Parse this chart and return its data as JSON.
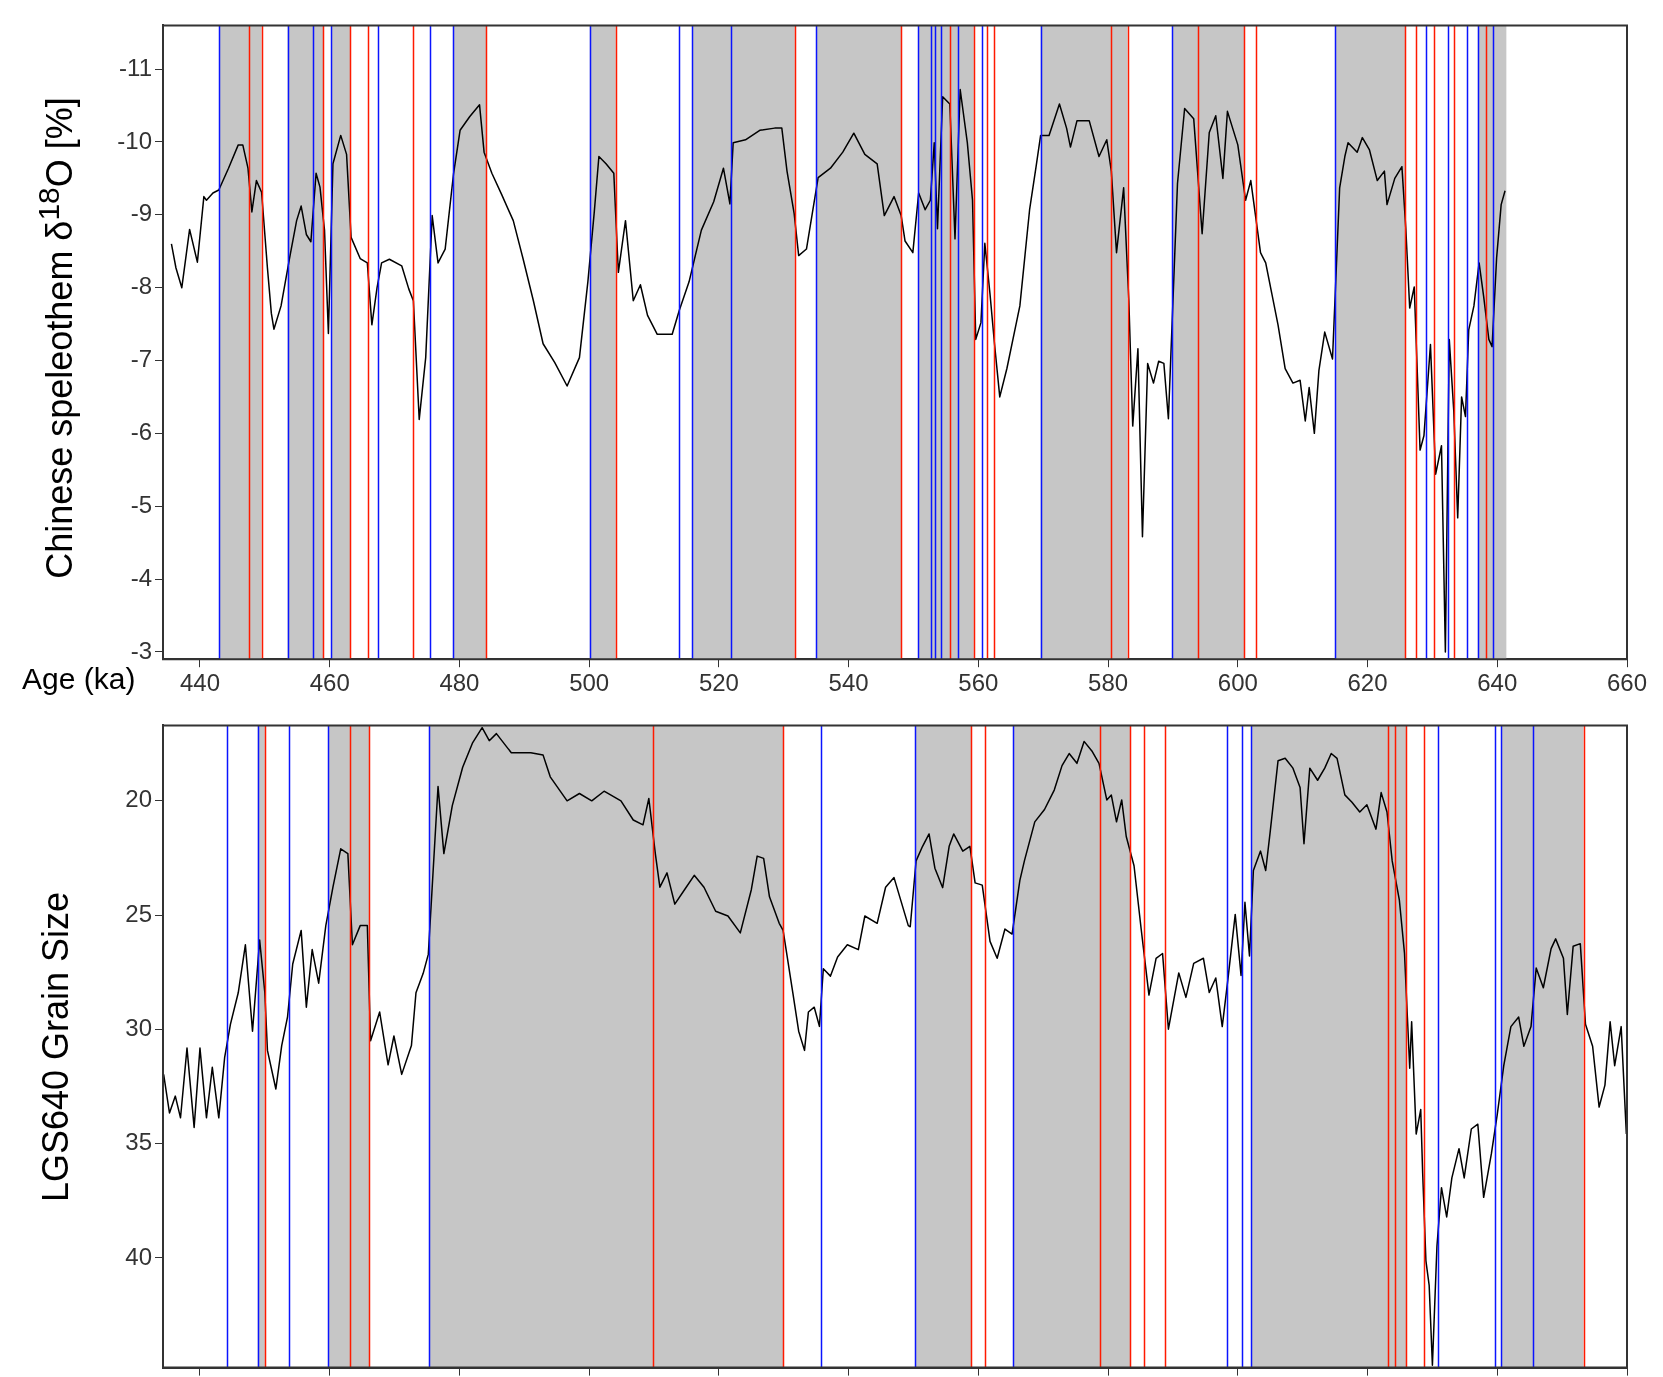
{
  "chart_data": [
    {
      "type": "line",
      "ylabel": "Chinese speleothem δ$^{18}$O [%]",
      "xlabel": "Age (ka)",
      "marker": "none",
      "legend": false,
      "xlim": [
        434.3,
        660
      ],
      "xticks": [
        440,
        460,
        480,
        500,
        520,
        540,
        560,
        580,
        600,
        620,
        640,
        660
      ],
      "ylim": [
        -2.9,
        -11.6
      ],
      "yticks": [
        -11,
        -10,
        -9,
        -8,
        -7,
        -6,
        -5,
        -4,
        -3
      ],
      "x": [
        435.6,
        436.3,
        437.2,
        438.4,
        439.6,
        440.6,
        441.0,
        442.0,
        442.9,
        444.4,
        445.9,
        446.6,
        447.4,
        448.0,
        448.7,
        449.5,
        450.4,
        451.0,
        451.4,
        452.5,
        453.8,
        454.9,
        455.6,
        456.4,
        457.1,
        457.9,
        458.5,
        459.2,
        459.8,
        460.5,
        461.7,
        462.6,
        463.3,
        464.7,
        465.8,
        466.5,
        467.3,
        468.0,
        469.2,
        471.1,
        472.2,
        472.9,
        473.8,
        474.8,
        475.8,
        476.7,
        477.8,
        479.1,
        480.1,
        481.6,
        483.1,
        483.8,
        485.0,
        486.5,
        488.3,
        489.8,
        491.4,
        492.9,
        494.7,
        496.6,
        498.5,
        499.8,
        500.8,
        501.5,
        502.6,
        503.8,
        504.5,
        505.6,
        506.8,
        507.9,
        509.0,
        510.5,
        512.8,
        513.9,
        515.4,
        517.3,
        519.2,
        520.7,
        521.7,
        522.2,
        524.1,
        526.3,
        528.6,
        529.7,
        530.5,
        531.6,
        532.3,
        533.5,
        534.4,
        535.3,
        537.2,
        539.1,
        540.8,
        542.5,
        544.4,
        545.5,
        547.0,
        548.1,
        548.7,
        549.9,
        550.8,
        551.8,
        552.6,
        553.2,
        553.7,
        554.5,
        555.6,
        556.4,
        557.2,
        558.3,
        559.1,
        559.6,
        560.4,
        561.0,
        561.8,
        562.5,
        563.3,
        564.4,
        566.4,
        567.9,
        568.9,
        569.6,
        570.9,
        572.5,
        573.6,
        574.2,
        575.2,
        577.1,
        578.6,
        579.8,
        580.5,
        581.3,
        582.4,
        583.2,
        583.8,
        584.6,
        585.3,
        586.1,
        587.0,
        587.8,
        588.6,
        589.3,
        590.7,
        591.8,
        593.2,
        594.5,
        595.6,
        596.6,
        597.7,
        598.4,
        600.0,
        601.2,
        602.0,
        603.5,
        604.3,
        606.2,
        607.3,
        608.5,
        609.6,
        610.4,
        611.0,
        611.8,
        612.5,
        613.4,
        614.6,
        615.7,
        616.5,
        617.0,
        618.4,
        619.2,
        620.3,
        621.5,
        622.6,
        623.0,
        624.2,
        625.3,
        625.9,
        626.5,
        627.2,
        628.1,
        628.7,
        629.7,
        630.5,
        631.4,
        632.0,
        632.6,
        633.3,
        633.9,
        634.5,
        635.1,
        635.6,
        636.4,
        637.2,
        637.9,
        638.7,
        639.2,
        639.9,
        640.6,
        641.2
      ],
      "series": [
        {
          "color": "#000000",
          "values": [
            -8.6,
            -8.27,
            -8.0,
            -8.8,
            -8.35,
            -9.25,
            -9.2,
            -9.3,
            -9.34,
            -9.64,
            -9.96,
            -9.96,
            -9.64,
            -9.04,
            -9.47,
            -9.31,
            -8.27,
            -7.65,
            -7.43,
            -7.75,
            -8.4,
            -8.92,
            -9.12,
            -8.73,
            -8.63,
            -9.57,
            -9.38,
            -8.79,
            -7.37,
            -9.7,
            -10.09,
            -9.83,
            -8.69,
            -8.4,
            -8.34,
            -7.49,
            -8.0,
            -8.34,
            -8.39,
            -8.3,
            -7.98,
            -7.82,
            -6.19,
            -7.04,
            -8.99,
            -8.34,
            -8.53,
            -9.57,
            -10.16,
            -10.35,
            -10.51,
            -9.86,
            -9.57,
            -9.28,
            -8.92,
            -8.4,
            -7.82,
            -7.23,
            -6.97,
            -6.65,
            -7.04,
            -8.08,
            -9.05,
            -9.8,
            -9.7,
            -9.57,
            -8.21,
            -8.92,
            -7.82,
            -8.04,
            -7.62,
            -7.36,
            -7.36,
            -7.69,
            -8.08,
            -8.79,
            -9.18,
            -9.64,
            -9.15,
            -9.99,
            -10.03,
            -10.16,
            -10.19,
            -10.19,
            -9.6,
            -9.02,
            -8.44,
            -8.53,
            -9.02,
            -9.51,
            -9.64,
            -9.86,
            -10.12,
            -9.83,
            -9.7,
            -8.99,
            -9.25,
            -8.99,
            -8.64,
            -8.48,
            -9.3,
            -9.07,
            -9.2,
            -9.99,
            -8.81,
            -10.62,
            -10.52,
            -8.67,
            -10.72,
            -9.99,
            -9.2,
            -7.29,
            -7.52,
            -8.61,
            -7.91,
            -7.22,
            -6.5,
            -6.89,
            -7.75,
            -9.07,
            -9.66,
            -10.09,
            -10.09,
            -10.52,
            -10.19,
            -9.93,
            -10.29,
            -10.29,
            -9.8,
            -10.03,
            -9.6,
            -8.48,
            -9.37,
            -7.82,
            -6.1,
            -7.16,
            -4.58,
            -6.96,
            -6.69,
            -6.99,
            -6.96,
            -6.2,
            -9.43,
            -10.46,
            -10.32,
            -8.74,
            -10.13,
            -10.36,
            -9.5,
            -10.42,
            -9.96,
            -9.2,
            -9.47,
            -8.48,
            -8.34,
            -7.49,
            -6.89,
            -6.69,
            -6.73,
            -6.17,
            -6.63,
            -6.0,
            -6.86,
            -7.39,
            -7.02,
            -9.37,
            -9.8,
            -9.99,
            -9.86,
            -10.06,
            -9.89,
            -9.47,
            -9.6,
            -9.14,
            -9.5,
            -9.66,
            -8.81,
            -7.72,
            -8.01,
            -5.77,
            -5.97,
            -7.22,
            -5.44,
            -5.83,
            -3.0,
            -7.29,
            -6.3,
            -4.84,
            -6.5,
            -6.23,
            -7.42,
            -7.75,
            -8.34,
            -7.88,
            -7.29,
            -7.19,
            -8.41,
            -9.14,
            -9.33
          ]
        }
      ],
      "bands": [
        {
          "axis": "x",
          "from": 443.0,
          "to": 449.5,
          "color": "#c6c6c6"
        },
        {
          "axis": "x",
          "from": 453.5,
          "to": 459.0,
          "color": "#c6c6c6"
        },
        {
          "axis": "x",
          "from": 460.2,
          "to": 463.2,
          "color": "#c6c6c6"
        },
        {
          "axis": "x",
          "from": 479.0,
          "to": 484.1,
          "color": "#c6c6c6"
        },
        {
          "axis": "x",
          "from": 500.1,
          "to": 504.1,
          "color": "#c6c6c6"
        },
        {
          "axis": "x",
          "from": 515.9,
          "to": 531.7,
          "color": "#c6c6c6"
        },
        {
          "axis": "x",
          "from": 535.0,
          "to": 548.1,
          "color": "#c6c6c6"
        },
        {
          "axis": "x",
          "from": 550.7,
          "to": 559.3,
          "color": "#c6c6c6"
        },
        {
          "axis": "x",
          "from": 569.6,
          "to": 583.0,
          "color": "#c6c6c6"
        },
        {
          "axis": "x",
          "from": 589.9,
          "to": 601.0,
          "color": "#c6c6c6"
        },
        {
          "axis": "x",
          "from": 615.0,
          "to": 625.8,
          "color": "#c6c6c6"
        },
        {
          "axis": "x",
          "from": 637.0,
          "to": 641.4,
          "color": "#c6c6c6"
        }
      ],
      "ref_lines": [
        {
          "axis": "x",
          "value": 443.0,
          "color": "#0a14ff"
        },
        {
          "axis": "x",
          "value": 447.5,
          "color": "#ff1a00"
        },
        {
          "axis": "x",
          "value": 449.5,
          "color": "#ff1a00"
        },
        {
          "axis": "x",
          "value": 453.5,
          "color": "#0a14ff"
        },
        {
          "axis": "x",
          "value": 457.4,
          "color": "#0a14ff"
        },
        {
          "axis": "x",
          "value": 459.0,
          "color": "#ff1a00"
        },
        {
          "axis": "x",
          "value": 460.2,
          "color": "#0a14ff"
        },
        {
          "axis": "x",
          "value": 463.2,
          "color": "#ff1a00"
        },
        {
          "axis": "x",
          "value": 465.9,
          "color": "#ff1a00"
        },
        {
          "axis": "x",
          "value": 467.4,
          "color": "#0a14ff"
        },
        {
          "axis": "x",
          "value": 472.8,
          "color": "#ff1a00"
        },
        {
          "axis": "x",
          "value": 475.5,
          "color": "#0a14ff"
        },
        {
          "axis": "x",
          "value": 479.0,
          "color": "#0a14ff"
        },
        {
          "axis": "x",
          "value": 484.1,
          "color": "#ff1a00"
        },
        {
          "axis": "x",
          "value": 500.1,
          "color": "#0a14ff"
        },
        {
          "axis": "x",
          "value": 504.1,
          "color": "#ff1a00"
        },
        {
          "axis": "x",
          "value": 513.9,
          "color": "#0a14ff"
        },
        {
          "axis": "x",
          "value": 515.9,
          "color": "#0a14ff"
        },
        {
          "axis": "x",
          "value": 521.9,
          "color": "#0a14ff"
        },
        {
          "axis": "x",
          "value": 531.7,
          "color": "#ff1a00"
        },
        {
          "axis": "x",
          "value": 535.0,
          "color": "#0a14ff"
        },
        {
          "axis": "x",
          "value": 548.1,
          "color": "#ff1a00"
        },
        {
          "axis": "x",
          "value": 550.7,
          "color": "#0a14ff"
        },
        {
          "axis": "x",
          "value": 552.7,
          "color": "#0a14ff"
        },
        {
          "axis": "x",
          "value": 553.3,
          "color": "#0a14ff"
        },
        {
          "axis": "x",
          "value": 554.3,
          "color": "#0a14ff"
        },
        {
          "axis": "x",
          "value": 555.6,
          "color": "#ff1a00"
        },
        {
          "axis": "x",
          "value": 556.9,
          "color": "#0a14ff"
        },
        {
          "axis": "x",
          "value": 559.3,
          "color": "#ff1a00"
        },
        {
          "axis": "x",
          "value": 560.5,
          "color": "#0a14ff"
        },
        {
          "axis": "x",
          "value": 561.4,
          "color": "#ff1a00"
        },
        {
          "axis": "x",
          "value": 562.4,
          "color": "#ff1a00"
        },
        {
          "axis": "x",
          "value": 569.6,
          "color": "#0a14ff"
        },
        {
          "axis": "x",
          "value": 580.4,
          "color": "#ff1a00"
        },
        {
          "axis": "x",
          "value": 583.0,
          "color": "#ff1a00"
        },
        {
          "axis": "x",
          "value": 589.9,
          "color": "#0a14ff"
        },
        {
          "axis": "x",
          "value": 593.9,
          "color": "#ff1a00"
        },
        {
          "axis": "x",
          "value": 601.0,
          "color": "#ff1a00"
        },
        {
          "axis": "x",
          "value": 602.8,
          "color": "#ff1a00"
        },
        {
          "axis": "x",
          "value": 615.0,
          "color": "#0a14ff"
        },
        {
          "axis": "x",
          "value": 625.8,
          "color": "#ff1a00"
        },
        {
          "axis": "x",
          "value": 627.4,
          "color": "#ff1a00"
        },
        {
          "axis": "x",
          "value": 629.0,
          "color": "#0a14ff"
        },
        {
          "axis": "x",
          "value": 630.3,
          "color": "#ff1a00"
        },
        {
          "axis": "x",
          "value": 632.4,
          "color": "#0a14ff"
        },
        {
          "axis": "x",
          "value": 633.4,
          "color": "#ff1a00"
        },
        {
          "axis": "x",
          "value": 635.3,
          "color": "#0a14ff"
        },
        {
          "axis": "x",
          "value": 637.0,
          "color": "#0a14ff"
        },
        {
          "axis": "x",
          "value": 638.2,
          "color": "#ff1a00"
        },
        {
          "axis": "x",
          "value": 639.3,
          "color": "#0a14ff"
        }
      ]
    },
    {
      "type": "line",
      "ylabel": "LGS640 Grain Size",
      "marker": "none",
      "legend": false,
      "tick_labels": "y",
      "xlim": [
        434.3,
        660
      ],
      "xticks": [
        440,
        460,
        480,
        500,
        520,
        540,
        560,
        580,
        600,
        620,
        640,
        660
      ],
      "ylim": [
        44.8,
        16.7
      ],
      "yticks": [
        20,
        25,
        30,
        35,
        40
      ],
      "x": [
        434.4,
        435.3,
        436.2,
        437.0,
        438.0,
        439.1,
        440.0,
        441.0,
        441.9,
        442.9,
        443.8,
        444.7,
        445.9,
        447.0,
        448.1,
        449.2,
        450.0,
        450.4,
        451.7,
        452.6,
        453.5,
        454.3,
        455.6,
        456.4,
        457.3,
        458.3,
        459.4,
        460.5,
        461.7,
        462.8,
        463.5,
        464.7,
        465.8,
        466.3,
        467.7,
        469.0,
        469.9,
        471.1,
        472.6,
        473.3,
        474.4,
        475.2,
        475.8,
        476.7,
        477.6,
        478.9,
        480.5,
        482.0,
        483.5,
        484.6,
        485.7,
        488.0,
        491.0,
        492.9,
        494.0,
        496.6,
        498.5,
        500.4,
        502.3,
        504.9,
        506.8,
        508.3,
        509.2,
        510.2,
        510.9,
        512.0,
        513.2,
        514.7,
        516.2,
        517.7,
        519.5,
        521.4,
        523.3,
        525.0,
        525.9,
        526.9,
        527.8,
        529.3,
        529.9,
        531.4,
        532.3,
        533.2,
        533.8,
        534.7,
        535.5,
        536.1,
        537.2,
        538.3,
        539.8,
        541.5,
        542.5,
        544.4,
        545.7,
        547.0,
        548.1,
        549.2,
        549.5,
        550.4,
        551.4,
        552.4,
        553.3,
        554.5,
        555.5,
        556.2,
        557.6,
        558.7,
        559.5,
        560.6,
        561.8,
        562.9,
        564.1,
        565.2,
        566.4,
        567.1,
        568.7,
        570.2,
        571.7,
        572.9,
        574.0,
        575.2,
        576.3,
        577.5,
        578.6,
        579.8,
        580.5,
        581.3,
        582.1,
        582.8,
        584.0,
        585.1,
        586.3,
        587.4,
        588.4,
        589.3,
        590.9,
        592.0,
        593.2,
        594.7,
        595.6,
        596.6,
        597.6,
        598.5,
        599.6,
        600.5,
        601.1,
        601.8,
        602.4,
        603.5,
        604.3,
        605.0,
        606.2,
        607.3,
        608.5,
        609.6,
        610.2,
        611.1,
        612.3,
        613.4,
        614.4,
        615.3,
        616.5,
        617.6,
        618.8,
        619.9,
        621.3,
        622.1,
        623.0,
        623.8,
        624.9,
        625.7,
        626.5,
        626.8,
        627.5,
        628.2,
        628.5,
        629.0,
        629.5,
        630.0,
        630.7,
        631.4,
        632.2,
        633.0,
        634.1,
        634.9,
        636.0,
        637.0,
        637.9,
        639.1,
        640.0,
        641.0,
        642.1,
        643.3,
        644.1,
        645.2,
        646.0,
        647.1,
        648.3,
        649.0,
        650.2,
        650.8,
        651.7,
        652.8,
        653.6,
        654.7,
        655.7,
        656.6,
        657.4,
        658.1,
        659.1,
        659.9
      ],
      "series": [
        {
          "color": "#000000",
          "values": [
            31.97,
            33.66,
            32.92,
            33.87,
            30.82,
            34.29,
            30.82,
            33.87,
            31.66,
            33.87,
            31.24,
            29.77,
            28.4,
            26.3,
            30.08,
            26.09,
            28.4,
            30.92,
            32.61,
            30.71,
            29.45,
            27.14,
            25.67,
            29.03,
            26.51,
            27.98,
            25.46,
            23.78,
            22.1,
            22.31,
            26.3,
            25.46,
            25.46,
            30.5,
            29.24,
            31.55,
            30.29,
            31.97,
            30.71,
            28.4,
            27.56,
            26.72,
            23.78,
            19.37,
            22.31,
            20.21,
            18.53,
            17.48,
            16.8,
            17.37,
            17.06,
            17.9,
            17.9,
            18.0,
            18.95,
            20.0,
            19.68,
            20.0,
            19.58,
            20.0,
            20.84,
            21.05,
            19.9,
            22.31,
            23.78,
            23.15,
            24.52,
            23.89,
            23.26,
            23.78,
            24.83,
            25.04,
            25.78,
            23.89,
            22.42,
            22.52,
            24.2,
            25.36,
            25.67,
            28.4,
            30.08,
            30.92,
            29.24,
            29.03,
            29.87,
            27.35,
            27.67,
            26.83,
            26.3,
            26.51,
            25.04,
            25.36,
            23.78,
            23.36,
            24.41,
            25.46,
            25.51,
            22.63,
            21.99,
            21.45,
            22.95,
            23.8,
            21.99,
            21.45,
            22.2,
            21.99,
            23.59,
            23.69,
            26.15,
            26.89,
            25.61,
            25.83,
            23.48,
            22.63,
            20.92,
            20.38,
            19.53,
            18.46,
            17.93,
            18.36,
            17.4,
            17.82,
            18.36,
            19.96,
            19.75,
            20.92,
            19.96,
            21.56,
            22.84,
            25.61,
            28.5,
            26.89,
            26.68,
            29.99,
            27.53,
            28.6,
            27.11,
            26.89,
            28.39,
            27.75,
            29.88,
            27.75,
            24.97,
            27.64,
            24.44,
            26.79,
            23.05,
            22.2,
            23.05,
            21.34,
            18.25,
            18.14,
            18.57,
            19.42,
            21.88,
            18.57,
            19.1,
            18.57,
            17.93,
            18.14,
            19.74,
            20.06,
            20.49,
            20.17,
            21.24,
            19.64,
            20.49,
            22.63,
            24.33,
            26.68,
            31.7,
            29.67,
            34.58,
            33.51,
            36.29,
            40.13,
            41.2,
            44.7,
            39.49,
            36.93,
            38.21,
            36.5,
            35.22,
            36.5,
            34.36,
            34.15,
            37.35,
            35.43,
            33.72,
            31.59,
            29.88,
            29.46,
            30.74,
            29.88,
            27.32,
            28.18,
            26.47,
            26.04,
            26.89,
            29.35,
            26.36,
            26.25,
            29.78,
            30.74,
            33.4,
            32.44,
            29.67,
            31.59,
            29.88,
            34.58
          ]
        }
      ],
      "bands": [
        {
          "axis": "x",
          "from": 448.9,
          "to": 450.0,
          "color": "#c6c6c6"
        },
        {
          "axis": "x",
          "from": 459.8,
          "to": 466.1,
          "color": "#c6c6c6"
        },
        {
          "axis": "x",
          "from": 475.3,
          "to": 529.9,
          "color": "#c6c6c6"
        },
        {
          "axis": "x",
          "from": 550.3,
          "to": 558.9,
          "color": "#c6c6c6"
        },
        {
          "axis": "x",
          "from": 565.4,
          "to": 583.4,
          "color": "#c6c6c6"
        },
        {
          "axis": "x",
          "from": 602.1,
          "to": 626.0,
          "color": "#c6c6c6"
        },
        {
          "axis": "x",
          "from": 640.6,
          "to": 653.3,
          "color": "#c6c6c6"
        }
      ],
      "ref_lines": [
        {
          "axis": "x",
          "value": 444.1,
          "color": "#0a14ff"
        },
        {
          "axis": "x",
          "value": 448.9,
          "color": "#0a14ff"
        },
        {
          "axis": "x",
          "value": 450.0,
          "color": "#ff1a00"
        },
        {
          "axis": "x",
          "value": 453.8,
          "color": "#0a14ff"
        },
        {
          "axis": "x",
          "value": 459.8,
          "color": "#0a14ff"
        },
        {
          "axis": "x",
          "value": 463.2,
          "color": "#ff1a00"
        },
        {
          "axis": "x",
          "value": 466.1,
          "color": "#ff1a00"
        },
        {
          "axis": "x",
          "value": 475.3,
          "color": "#0a14ff"
        },
        {
          "axis": "x",
          "value": 509.9,
          "color": "#ff1a00"
        },
        {
          "axis": "x",
          "value": 529.9,
          "color": "#ff1a00"
        },
        {
          "axis": "x",
          "value": 535.8,
          "color": "#0a14ff"
        },
        {
          "axis": "x",
          "value": 550.3,
          "color": "#0a14ff"
        },
        {
          "axis": "x",
          "value": 558.9,
          "color": "#ff1a00"
        },
        {
          "axis": "x",
          "value": 561.0,
          "color": "#ff1a00"
        },
        {
          "axis": "x",
          "value": 565.4,
          "color": "#0a14ff"
        },
        {
          "axis": "x",
          "value": 578.8,
          "color": "#ff1a00"
        },
        {
          "axis": "x",
          "value": 583.4,
          "color": "#ff1a00"
        },
        {
          "axis": "x",
          "value": 585.5,
          "color": "#ff1a00"
        },
        {
          "axis": "x",
          "value": 588.8,
          "color": "#ff1a00"
        },
        {
          "axis": "x",
          "value": 598.3,
          "color": "#0a14ff"
        },
        {
          "axis": "x",
          "value": 600.6,
          "color": "#0a14ff"
        },
        {
          "axis": "x",
          "value": 602.1,
          "color": "#0a14ff"
        },
        {
          "axis": "x",
          "value": 623.2,
          "color": "#ff1a00"
        },
        {
          "axis": "x",
          "value": 624.3,
          "color": "#ff1a00"
        },
        {
          "axis": "x",
          "value": 626.0,
          "color": "#ff1a00"
        },
        {
          "axis": "x",
          "value": 628.7,
          "color": "#ff1a00"
        },
        {
          "axis": "x",
          "value": 630.9,
          "color": "#0a14ff"
        },
        {
          "axis": "x",
          "value": 639.6,
          "color": "#0a14ff"
        },
        {
          "axis": "x",
          "value": 640.6,
          "color": "#0a14ff"
        },
        {
          "axis": "x",
          "value": 645.5,
          "color": "#0a14ff"
        },
        {
          "axis": "x",
          "value": 653.3,
          "color": "#ff1a00"
        }
      ]
    }
  ]
}
